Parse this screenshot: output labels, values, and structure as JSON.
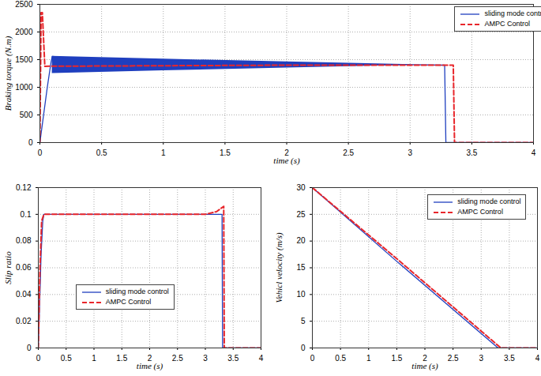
{
  "chart_data": [
    {
      "type": "line",
      "xlabel": "time (s)",
      "ylabel": "Braking torque (N.m)",
      "xlim": [
        0,
        4
      ],
      "xticks": [
        0,
        0.5,
        1,
        1.5,
        2,
        2.5,
        3,
        3.5,
        4
      ],
      "ylim": [
        0,
        2500
      ],
      "yticks": [
        0,
        500,
        1000,
        1500,
        2000,
        2500
      ],
      "grid": true,
      "legend": "upper right",
      "series": [
        {
          "name": "sliding mode control",
          "color": "#1f3fbf",
          "line_style": "solid",
          "x": [
            0,
            0.03,
            0.06,
            0.09,
            0.1,
            1,
            2,
            3,
            3.28,
            3.29,
            4
          ],
          "values": [
            0,
            500,
            1000,
            1450,
            1560,
            1400,
            1400,
            1410,
            1400,
            0,
            0
          ],
          "band": {
            "x": [
              0.1,
              1,
              2,
              3
            ],
            "lower": [
              1250,
              1300,
              1350,
              1400
            ],
            "upper": [
              1560,
              1510,
              1460,
              1410
            ]
          }
        },
        {
          "name": "AMPC Control",
          "color": "#e8262b",
          "line_style": "dashed",
          "x": [
            0,
            0.01,
            0.02,
            0.04,
            1,
            2,
            3,
            3.35,
            3.36,
            4
          ],
          "values": [
            0,
            2350,
            2350,
            1380,
            1390,
            1400,
            1400,
            1400,
            0,
            0
          ]
        }
      ]
    },
    {
      "type": "line",
      "xlabel": "time (s)",
      "ylabel": "Slip ratio",
      "xlim": [
        0,
        4
      ],
      "xticks": [
        0,
        0.5,
        1,
        1.5,
        2,
        2.5,
        3,
        3.5,
        4
      ],
      "ylim": [
        0,
        0.12
      ],
      "yticks": [
        0,
        0.02,
        0.04,
        0.06,
        0.08,
        0.1,
        0.12
      ],
      "grid": true,
      "legend": "lower center",
      "series": [
        {
          "name": "sliding mode control",
          "color": "#1f3fbf",
          "line_style": "solid",
          "x": [
            0,
            0.05,
            0.08,
            0.1,
            3.3,
            3.31,
            4
          ],
          "values": [
            0,
            0.07,
            0.095,
            0.1,
            0.1,
            0,
            0
          ]
        },
        {
          "name": "AMPC Control",
          "color": "#e8262b",
          "line_style": "dashed",
          "x": [
            0,
            0.03,
            0.06,
            0.1,
            3.0,
            3.2,
            3.33,
            3.34,
            4
          ],
          "values": [
            0,
            0.06,
            0.095,
            0.1,
            0.1,
            0.102,
            0.106,
            0,
            0
          ]
        }
      ]
    },
    {
      "type": "line",
      "xlabel": "time (s)",
      "ylabel": "Vehicl velocity (m/s)",
      "xlim": [
        0,
        4
      ],
      "xticks": [
        0,
        0.5,
        1,
        1.5,
        2,
        2.5,
        3,
        3.5,
        4
      ],
      "ylim": [
        0,
        30
      ],
      "yticks": [
        0,
        5,
        10,
        15,
        20,
        25,
        30
      ],
      "grid": true,
      "legend": "upper right",
      "series": [
        {
          "name": "sliding mode control",
          "color": "#1f3fbf",
          "line_style": "solid",
          "x": [
            0,
            1.5,
            3.3,
            4
          ],
          "values": [
            30,
            16.2,
            0,
            0
          ]
        },
        {
          "name": "AMPC Control",
          "color": "#e8262b",
          "line_style": "dashed",
          "x": [
            0,
            1.5,
            3.35,
            4
          ],
          "values": [
            30,
            16.7,
            0,
            0
          ]
        }
      ]
    }
  ]
}
